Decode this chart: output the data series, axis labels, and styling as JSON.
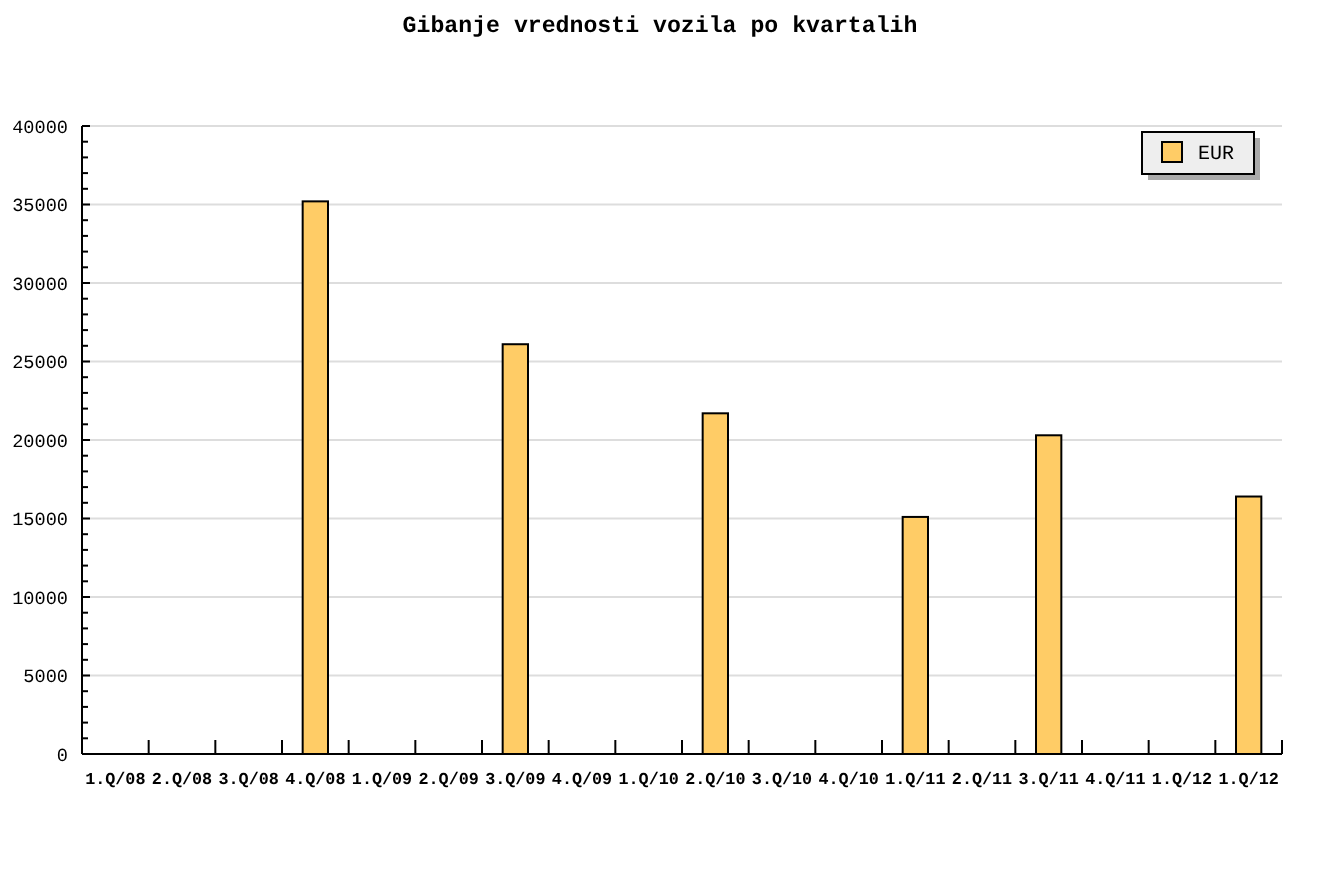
{
  "chart_data": {
    "type": "bar",
    "title": "Gibanje vrednosti vozila po kvartalih",
    "categories": [
      "1.Q/08",
      "2.Q/08",
      "3.Q/08",
      "4.Q/08",
      "1.Q/09",
      "2.Q/09",
      "3.Q/09",
      "4.Q/09",
      "1.Q/10",
      "2.Q/10",
      "3.Q/10",
      "4.Q/10",
      "1.Q/11",
      "2.Q/11",
      "3.Q/11",
      "4.Q/11",
      "1.Q/12",
      "1.Q/12"
    ],
    "series": [
      {
        "name": "EUR",
        "color": "#ffcc66",
        "values": [
          null,
          null,
          null,
          35200,
          null,
          null,
          26100,
          null,
          null,
          21700,
          null,
          null,
          15100,
          null,
          20300,
          null,
          null,
          16400
        ]
      }
    ],
    "ylim": [
      0,
      40000
    ],
    "yticks": [
      0,
      {
        "value": 1000,
        "label": null
      },
      {
        "value": 2000,
        "label": null
      },
      {
        "value": 3000,
        "label": null
      },
      {
        "value": 4000,
        "label": null
      },
      5000,
      {
        "value": 6000,
        "label": null
      },
      {
        "value": 7000,
        "label": null
      },
      {
        "value": 8000,
        "label": null
      },
      {
        "value": 9000,
        "label": null
      },
      10000,
      {
        "value": 11000,
        "label": null
      },
      {
        "value": 12000,
        "label": null
      },
      {
        "value": 13000,
        "label": null
      },
      {
        "value": 14000,
        "label": null
      },
      15000,
      {
        "value": 16000,
        "label": null
      },
      {
        "value": 17000,
        "label": null
      },
      {
        "value": 18000,
        "label": null
      },
      {
        "value": 19000,
        "label": null
      },
      20000,
      {
        "value": 21000,
        "label": null
      },
      {
        "value": 22000,
        "label": null
      },
      {
        "value": 23000,
        "label": null
      },
      {
        "value": 24000,
        "label": null
      },
      25000,
      {
        "value": 26000,
        "label": null
      },
      {
        "value": 27000,
        "label": null
      },
      {
        "value": 28000,
        "label": null
      },
      {
        "value": 29000,
        "label": null
      },
      30000,
      {
        "value": 31000,
        "label": null
      },
      {
        "value": 32000,
        "label": null
      },
      {
        "value": 33000,
        "label": null
      },
      {
        "value": 34000,
        "label": null
      },
      35000,
      {
        "value": 36000,
        "label": null
      },
      {
        "value": 37000,
        "label": null
      },
      {
        "value": 38000,
        "label": null
      },
      {
        "value": 39000,
        "label": null
      },
      40000
    ],
    "grid": "y",
    "legend": "top right"
  }
}
